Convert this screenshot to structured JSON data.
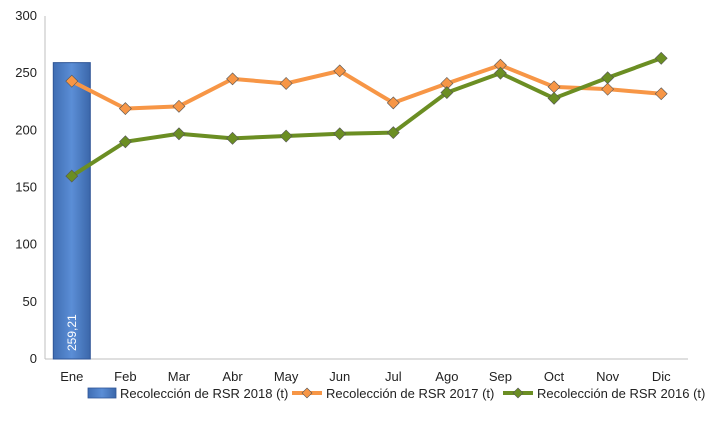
{
  "chart_data": {
    "type": "bar+line",
    "categories": [
      "Ene",
      "Feb",
      "Mar",
      "Abr",
      "May",
      "Jun",
      "Jul",
      "Ago",
      "Sep",
      "Oct",
      "Nov",
      "Dic"
    ],
    "ylim": [
      0,
      300
    ],
    "yticks": [
      "0",
      "50",
      "100",
      "150",
      "200",
      "250",
      "300"
    ],
    "grid": false,
    "legend_position": "bottom",
    "series": [
      {
        "name": "Recolección de RSR 2018 (t)",
        "kind": "bar",
        "color": "#4472C4",
        "values": [
          259.21,
          null,
          null,
          null,
          null,
          null,
          null,
          null,
          null,
          null,
          null,
          null
        ],
        "data_labels": [
          "259,21"
        ]
      },
      {
        "name": "Recolección de RSR 2017 (t)",
        "kind": "line",
        "color": "#F79646",
        "values": [
          243,
          219,
          221,
          245,
          241,
          252,
          224,
          241,
          257,
          238,
          236,
          232
        ]
      },
      {
        "name": "Recolección de RSR 2016 (t)",
        "kind": "line",
        "color": "#6B8E23",
        "values": [
          160,
          190,
          197,
          193,
          195,
          197,
          198,
          233,
          250,
          228,
          246,
          263
        ]
      }
    ]
  }
}
